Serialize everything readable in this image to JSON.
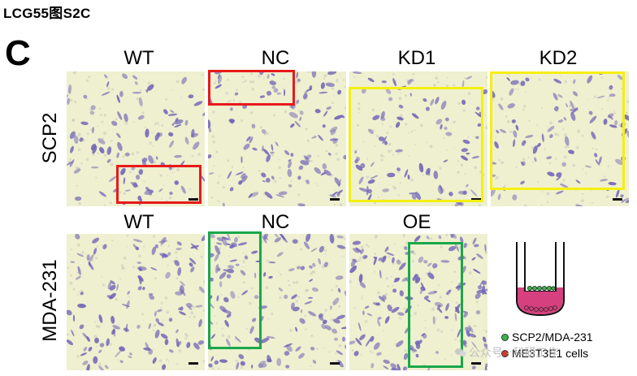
{
  "figure_id": "LCG55图S2C",
  "panel_letter": "C",
  "row1": {
    "row_label": "SCP2",
    "columns": [
      "WT",
      "NC",
      "KD1",
      "KD2"
    ]
  },
  "row2": {
    "row_label": "MDA-231",
    "columns": [
      "WT",
      "NC",
      "OE"
    ]
  },
  "legend": {
    "item1": "SCP2/MDA-231",
    "item2": "ME3T3E1 cells"
  },
  "watermark": "公众号 · 科研工作",
  "colors": {
    "red_box": "#e8191b",
    "yellow_box": "#f5ef12",
    "green_box": "#19a84a",
    "cell_stain": "#6f63b6",
    "background_field": "#eef0cf",
    "insert_fill": "#d6407e",
    "legend_dot_green": "#3ab54a",
    "legend_dot_red": "#cc3b2a"
  },
  "icons": {
    "transwell": "transwell-diagram-icon"
  }
}
